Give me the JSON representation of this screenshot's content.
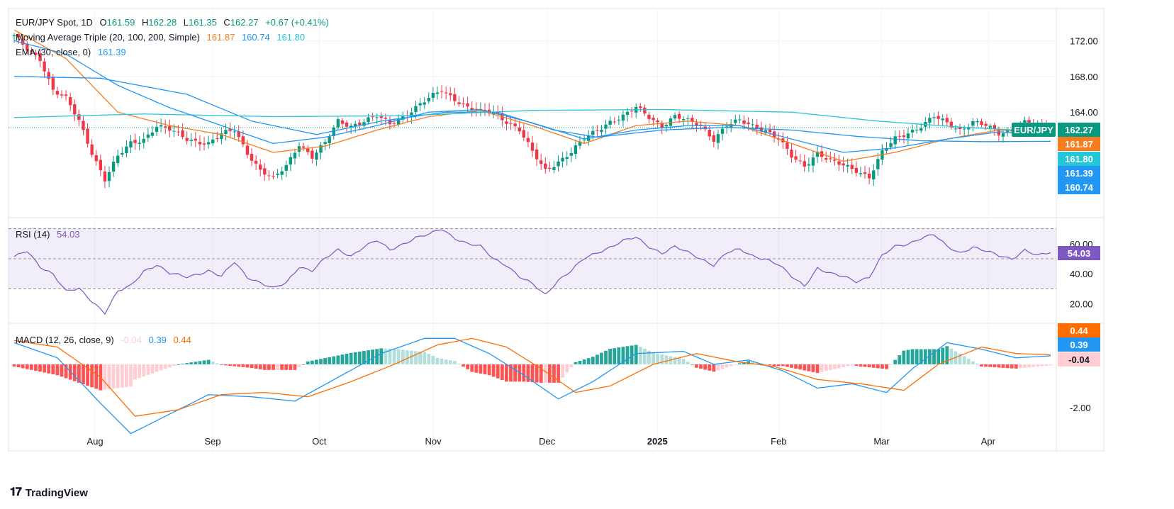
{
  "header": {
    "symbol": "EUR/JPY Spot, 1D",
    "open_label": "O",
    "open": "161.59",
    "high_label": "H",
    "high": "162.28",
    "low_label": "L",
    "low": "161.35",
    "close_label": "C",
    "close": "162.27",
    "change": "+0.67 (+0.41%)"
  },
  "legend": {
    "ma_title": "Moving Average Triple (20, 100, 200, Simple)",
    "ma20": "161.87",
    "ma100": "160.74",
    "ma200": "161.80",
    "ema_title": "EMA (30, close, 0)",
    "ema": "161.39",
    "rsi_title": "RSI (14)",
    "rsi": "54.03",
    "macd_title": "MACD (12, 26, close, 9)",
    "macd_hist": "-0.04",
    "macd": "0.39",
    "macd_signal": "0.44"
  },
  "colors": {
    "up": "#089981",
    "down": "#f23645",
    "ma20": "#f57c1f",
    "ma100": "#2196f3",
    "ma200": "#26c6da",
    "ema": "#2196f3",
    "rsi": "#7e57c2",
    "hist_up_strong": "#26a69a",
    "hist_up_weak": "#b2dfdb",
    "hist_down_strong": "#ff5252",
    "hist_down_weak": "#ffcdd2",
    "macd": "#2196f3",
    "signal": "#ff6d00"
  },
  "brand": {
    "name": "TradingView"
  },
  "chart_data": {
    "type": "candlestick",
    "title": "EUR/JPY Spot, 1D",
    "x_tick_labels": [
      "Aug",
      "Sep",
      "Oct",
      "Nov",
      "Dec",
      "2025",
      "Feb",
      "Mar",
      "Apr"
    ],
    "x_tick_dates": [
      "2024-08-01",
      "2024-09-02",
      "2024-10-01",
      "2024-11-01",
      "2024-12-02",
      "2025-01-01",
      "2025-02-03",
      "2025-03-03",
      "2025-04-01"
    ],
    "x_range": [
      "2024-07-10",
      "2025-04-18"
    ],
    "price_axis": {
      "ticks": [
        "172.00",
        "168.00",
        "164.00"
      ],
      "ylim": [
        152.2,
        175.6
      ]
    },
    "last_price": "162.27",
    "price_tags": [
      {
        "text": "EUR/JPY",
        "value": 162.27,
        "color": "#089981"
      },
      {
        "text": "162.27",
        "value": 162.27,
        "color": "#089981"
      },
      {
        "text": "161.87",
        "value": 161.87,
        "color": "#f57c1f"
      },
      {
        "text": "161.80",
        "value": 161.8,
        "color": "#26c6da"
      },
      {
        "text": "161.39",
        "value": 161.39,
        "color": "#2196f3"
      },
      {
        "text": "160.74",
        "value": 160.74,
        "color": "#2196f3"
      }
    ],
    "price_anchors": [
      [
        0,
        172.5
      ],
      [
        3,
        171.0
      ],
      [
        6,
        170.0
      ],
      [
        9,
        166.5
      ],
      [
        12,
        165.5
      ],
      [
        15,
        163.0
      ],
      [
        18,
        159.5
      ],
      [
        21,
        156.5
      ],
      [
        24,
        159.0
      ],
      [
        27,
        160.5
      ],
      [
        30,
        161.0
      ],
      [
        33,
        162.5
      ],
      [
        36,
        162.0
      ],
      [
        40,
        161.0
      ],
      [
        45,
        160.5
      ],
      [
        48,
        161.5
      ],
      [
        51,
        162.0
      ],
      [
        54,
        159.5
      ],
      [
        57,
        157.5
      ],
      [
        60,
        156.5
      ],
      [
        63,
        158.0
      ],
      [
        66,
        160.5
      ],
      [
        69,
        159.0
      ],
      [
        72,
        160.5
      ],
      [
        75,
        163.0
      ],
      [
        78,
        162.5
      ],
      [
        81,
        163.0
      ],
      [
        84,
        163.5
      ],
      [
        87,
        162.7
      ],
      [
        90,
        163.5
      ],
      [
        93,
        164.5
      ],
      [
        96,
        165.5
      ],
      [
        99,
        166.5
      ],
      [
        102,
        165.5
      ],
      [
        105,
        164.5
      ],
      [
        108,
        164.0
      ],
      [
        111,
        164.0
      ],
      [
        114,
        163.0
      ],
      [
        117,
        162.0
      ],
      [
        120,
        159.5
      ],
      [
        123,
        157.5
      ],
      [
        126,
        158.5
      ],
      [
        129,
        159.5
      ],
      [
        132,
        161.0
      ],
      [
        135,
        162.0
      ],
      [
        138,
        163.0
      ],
      [
        141,
        163.5
      ],
      [
        144,
        164.5
      ],
      [
        147,
        163.5
      ],
      [
        150,
        162.5
      ],
      [
        153,
        163.5
      ],
      [
        156,
        163.0
      ],
      [
        159,
        162.5
      ],
      [
        162,
        161.0
      ],
      [
        165,
        162.5
      ],
      [
        168,
        163.0
      ],
      [
        171,
        162.5
      ],
      [
        174,
        162.0
      ],
      [
        177,
        161.0
      ],
      [
        180,
        159.0
      ],
      [
        183,
        158.0
      ],
      [
        186,
        159.5
      ],
      [
        189,
        158.5
      ],
      [
        192,
        158.0
      ],
      [
        195,
        157.5
      ],
      [
        198,
        156.8
      ],
      [
        201,
        159.5
      ],
      [
        204,
        161.0
      ],
      [
        207,
        161.7
      ],
      [
        210,
        162.5
      ],
      [
        213,
        163.5
      ],
      [
        216,
        162.7
      ],
      [
        219,
        162.0
      ],
      [
        222,
        163.0
      ],
      [
        225,
        162.5
      ],
      [
        228,
        161.5
      ],
      [
        231,
        162.0
      ],
      [
        234,
        163.0
      ],
      [
        237,
        162.4
      ],
      [
        240,
        162.27
      ]
    ],
    "series": [
      {
        "name": "MA 20",
        "last": "161.87",
        "anchors": [
          [
            0,
            173.2
          ],
          [
            12,
            170.0
          ],
          [
            24,
            164.0
          ],
          [
            36,
            162.5
          ],
          [
            48,
            161.5
          ],
          [
            60,
            159.5
          ],
          [
            72,
            160.2
          ],
          [
            84,
            162.0
          ],
          [
            96,
            163.5
          ],
          [
            108,
            164.2
          ],
          [
            120,
            162.5
          ],
          [
            132,
            160.5
          ],
          [
            144,
            162.5
          ],
          [
            156,
            163.0
          ],
          [
            168,
            162.5
          ],
          [
            180,
            160.5
          ],
          [
            192,
            158.5
          ],
          [
            204,
            159.5
          ],
          [
            216,
            161.0
          ],
          [
            228,
            162.0
          ],
          [
            240,
            161.87
          ]
        ]
      },
      {
        "name": "MA 100",
        "last": "160.74",
        "anchors": [
          [
            0,
            168.0
          ],
          [
            20,
            167.8
          ],
          [
            40,
            166.0
          ],
          [
            55,
            163.0
          ],
          [
            70,
            161.5
          ],
          [
            85,
            163.0
          ],
          [
            100,
            164.0
          ],
          [
            112,
            164.0
          ],
          [
            125,
            162.0
          ],
          [
            135,
            161.2
          ],
          [
            150,
            162.0
          ],
          [
            165,
            162.3
          ],
          [
            180,
            162.0
          ],
          [
            195,
            161.3
          ],
          [
            210,
            160.8
          ],
          [
            225,
            160.7
          ],
          [
            240,
            160.74
          ]
        ]
      },
      {
        "name": "MA 200",
        "last": "161.80",
        "anchors": [
          [
            0,
            163.4
          ],
          [
            30,
            163.8
          ],
          [
            60,
            163.5
          ],
          [
            90,
            163.6
          ],
          [
            120,
            164.2
          ],
          [
            150,
            164.3
          ],
          [
            180,
            164.0
          ],
          [
            200,
            163.0
          ],
          [
            220,
            162.3
          ],
          [
            240,
            161.8
          ]
        ]
      },
      {
        "name": "EMA 30",
        "last": "161.39",
        "anchors": [
          [
            0,
            172.0
          ],
          [
            12,
            170.5
          ],
          [
            24,
            167.0
          ],
          [
            36,
            164.5
          ],
          [
            48,
            162.5
          ],
          [
            60,
            160.5
          ],
          [
            72,
            161.2
          ],
          [
            84,
            162.5
          ],
          [
            96,
            164.0
          ],
          [
            108,
            164.3
          ],
          [
            120,
            162.8
          ],
          [
            132,
            161.0
          ],
          [
            144,
            162.0
          ],
          [
            156,
            162.5
          ],
          [
            168,
            162.5
          ],
          [
            180,
            161.0
          ],
          [
            192,
            159.5
          ],
          [
            204,
            160.0
          ],
          [
            216,
            161.0
          ],
          [
            228,
            161.8
          ],
          [
            240,
            161.39
          ]
        ]
      }
    ],
    "rsi": {
      "title": "RSI (14)",
      "last": "54.03",
      "ticks": [
        "60.00",
        "40.00",
        "20.00"
      ],
      "ylim": [
        7,
        76
      ],
      "band": [
        30,
        70
      ],
      "mid": 50,
      "anchors": [
        [
          0,
          51
        ],
        [
          3,
          55
        ],
        [
          6,
          45
        ],
        [
          9,
          40
        ],
        [
          12,
          28
        ],
        [
          15,
          30
        ],
        [
          18,
          22
        ],
        [
          21,
          14
        ],
        [
          24,
          28
        ],
        [
          27,
          32
        ],
        [
          30,
          42
        ],
        [
          33,
          46
        ],
        [
          36,
          40
        ],
        [
          40,
          38
        ],
        [
          45,
          42
        ],
        [
          48,
          38
        ],
        [
          51,
          48
        ],
        [
          54,
          38
        ],
        [
          57,
          34
        ],
        [
          60,
          30
        ],
        [
          63,
          34
        ],
        [
          66,
          45
        ],
        [
          69,
          42
        ],
        [
          72,
          50
        ],
        [
          75,
          56
        ],
        [
          78,
          52
        ],
        [
          81,
          58
        ],
        [
          84,
          62
        ],
        [
          87,
          56
        ],
        [
          90,
          60
        ],
        [
          93,
          64
        ],
        [
          96,
          66
        ],
        [
          99,
          70
        ],
        [
          102,
          64
        ],
        [
          105,
          60
        ],
        [
          108,
          58
        ],
        [
          111,
          50
        ],
        [
          114,
          46
        ],
        [
          117,
          38
        ],
        [
          120,
          33
        ],
        [
          123,
          26
        ],
        [
          126,
          36
        ],
        [
          129,
          42
        ],
        [
          132,
          50
        ],
        [
          135,
          54
        ],
        [
          138,
          58
        ],
        [
          141,
          62
        ],
        [
          144,
          64
        ],
        [
          147,
          58
        ],
        [
          150,
          54
        ],
        [
          153,
          58
        ],
        [
          156,
          54
        ],
        [
          159,
          50
        ],
        [
          162,
          46
        ],
        [
          165,
          54
        ],
        [
          168,
          56
        ],
        [
          171,
          52
        ],
        [
          174,
          50
        ],
        [
          177,
          46
        ],
        [
          180,
          38
        ],
        [
          183,
          32
        ],
        [
          186,
          44
        ],
        [
          189,
          40
        ],
        [
          192,
          38
        ],
        [
          195,
          35
        ],
        [
          198,
          38
        ],
        [
          201,
          52
        ],
        [
          204,
          58
        ],
        [
          207,
          60
        ],
        [
          210,
          64
        ],
        [
          213,
          66
        ],
        [
          216,
          58
        ],
        [
          219,
          54
        ],
        [
          222,
          58
        ],
        [
          225,
          55
        ],
        [
          228,
          52
        ],
        [
          231,
          50
        ],
        [
          234,
          56
        ],
        [
          237,
          52
        ],
        [
          240,
          54.03
        ]
      ]
    },
    "macd": {
      "title": "MACD (12, 26, close, 9)",
      "histogram_last": "-0.04",
      "macd_last": "0.39",
      "signal_last": "0.44",
      "ticks": [
        "-2.00"
      ],
      "ylim": [
        -4.0,
        1.8
      ],
      "macd_anchors": [
        [
          0,
          1.0
        ],
        [
          10,
          0.3
        ],
        [
          20,
          -1.8
        ],
        [
          27,
          -3.2
        ],
        [
          35,
          -2.4
        ],
        [
          45,
          -1.4
        ],
        [
          55,
          -1.5
        ],
        [
          65,
          -1.7
        ],
        [
          75,
          -0.6
        ],
        [
          85,
          0.5
        ],
        [
          95,
          1.2
        ],
        [
          102,
          1.2
        ],
        [
          110,
          0.5
        ],
        [
          118,
          -0.5
        ],
        [
          126,
          -1.6
        ],
        [
          134,
          -0.8
        ],
        [
          144,
          0.5
        ],
        [
          155,
          0.6
        ],
        [
          162,
          0.0
        ],
        [
          170,
          0.2
        ],
        [
          178,
          -0.3
        ],
        [
          186,
          -1.1
        ],
        [
          194,
          -0.9
        ],
        [
          202,
          -1.3
        ],
        [
          208,
          -0.2
        ],
        [
          216,
          1.0
        ],
        [
          224,
          0.7
        ],
        [
          232,
          0.3
        ],
        [
          240,
          0.39
        ]
      ],
      "signal_anchors": [
        [
          0,
          1.1
        ],
        [
          10,
          0.8
        ],
        [
          20,
          -0.6
        ],
        [
          28,
          -2.4
        ],
        [
          38,
          -2.1
        ],
        [
          48,
          -1.4
        ],
        [
          58,
          -1.3
        ],
        [
          68,
          -1.5
        ],
        [
          78,
          -0.8
        ],
        [
          88,
          0.0
        ],
        [
          98,
          0.9
        ],
        [
          106,
          1.2
        ],
        [
          114,
          0.8
        ],
        [
          122,
          -0.2
        ],
        [
          130,
          -1.3
        ],
        [
          138,
          -1.0
        ],
        [
          148,
          0.0
        ],
        [
          158,
          0.5
        ],
        [
          168,
          0.1
        ],
        [
          176,
          -0.1
        ],
        [
          186,
          -0.7
        ],
        [
          196,
          -0.9
        ],
        [
          206,
          -1.2
        ],
        [
          214,
          0.0
        ],
        [
          224,
          0.8
        ],
        [
          232,
          0.5
        ],
        [
          240,
          0.44
        ]
      ]
    }
  }
}
